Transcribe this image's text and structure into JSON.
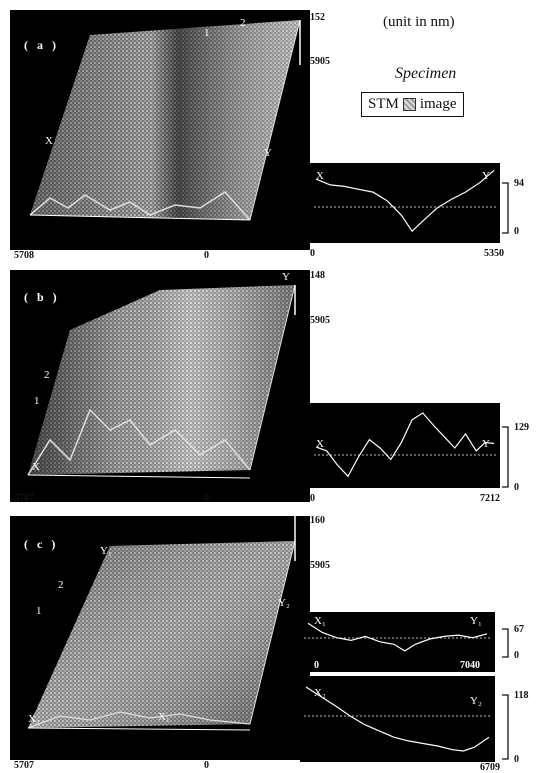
{
  "header": {
    "unit_note": "(unit in nm)",
    "legend_title": "Specimen",
    "legend_left": "STM",
    "legend_right": "image"
  },
  "panels": [
    {
      "id": "a",
      "letter": "( a )",
      "z_max": "152",
      "y_extent": "5905",
      "x_extent": "5708",
      "origin": "0",
      "marker_x": "X",
      "marker_y": "Y",
      "axis_1": "1",
      "axis_2": "2",
      "profiles": [
        {
          "start_label": "X",
          "end_label": "Y",
          "x_min": "0",
          "x_max": "5350",
          "z_max": "94",
          "z_min": "0",
          "x": [
            0,
            0.08,
            0.16,
            0.24,
            0.32,
            0.4,
            0.48,
            0.54,
            0.6,
            0.68,
            0.76,
            0.84,
            0.92,
            1.0
          ],
          "y": [
            80,
            72,
            70,
            66,
            62,
            50,
            30,
            8,
            22,
            40,
            52,
            62,
            75,
            92
          ]
        }
      ]
    },
    {
      "id": "b",
      "letter": "( b )",
      "z_max": "148",
      "y_extent": "5905",
      "x_extent": "5707",
      "origin": "0",
      "marker_x": "X",
      "marker_y": "Y",
      "axis_1": "1",
      "axis_2": "2",
      "profiles": [
        {
          "start_label": "X",
          "end_label": "Y",
          "x_min": "0",
          "x_max": "7212",
          "z_max": "129",
          "z_min": "0",
          "x": [
            0,
            0.06,
            0.12,
            0.18,
            0.24,
            0.3,
            0.36,
            0.42,
            0.48,
            0.54,
            0.6,
            0.66,
            0.72,
            0.78,
            0.84,
            0.9,
            0.95,
            1.0
          ],
          "y": [
            62,
            55,
            30,
            10,
            45,
            75,
            60,
            40,
            70,
            110,
            122,
            100,
            80,
            60,
            85,
            55,
            70,
            68
          ]
        }
      ]
    },
    {
      "id": "c",
      "letter": "( c )",
      "z_max": "160",
      "y_extent": "5905",
      "x_extent": "5707",
      "origin": "0",
      "marker_x": "X₁",
      "marker_y": "Y₁",
      "marker_x2": "X₂",
      "marker_y2": "Y₂",
      "axis_1": "1",
      "axis_2": "2",
      "profiles": [
        {
          "start_label": "X₁",
          "end_label": "Y₁",
          "x_min": "0",
          "x_max": "7040",
          "z_max": "67",
          "z_min": "0",
          "x": [
            0,
            0.08,
            0.16,
            0.24,
            0.32,
            0.4,
            0.48,
            0.54,
            0.6,
            0.68,
            0.76,
            0.84,
            0.92,
            1.0
          ],
          "y": [
            62,
            48,
            40,
            36,
            42,
            34,
            30,
            20,
            30,
            38,
            42,
            44,
            40,
            46
          ]
        },
        {
          "start_label": "X₂",
          "end_label": "Y₂",
          "x_min": "0",
          "x_max": "6709",
          "z_max": "118",
          "z_min": "0",
          "x": [
            0,
            0.08,
            0.16,
            0.24,
            0.32,
            0.4,
            0.48,
            0.56,
            0.64,
            0.72,
            0.8,
            0.86,
            0.92,
            1.0
          ],
          "y": [
            110,
            95,
            80,
            64,
            50,
            40,
            30,
            24,
            20,
            16,
            10,
            8,
            14,
            30
          ]
        }
      ]
    }
  ]
}
